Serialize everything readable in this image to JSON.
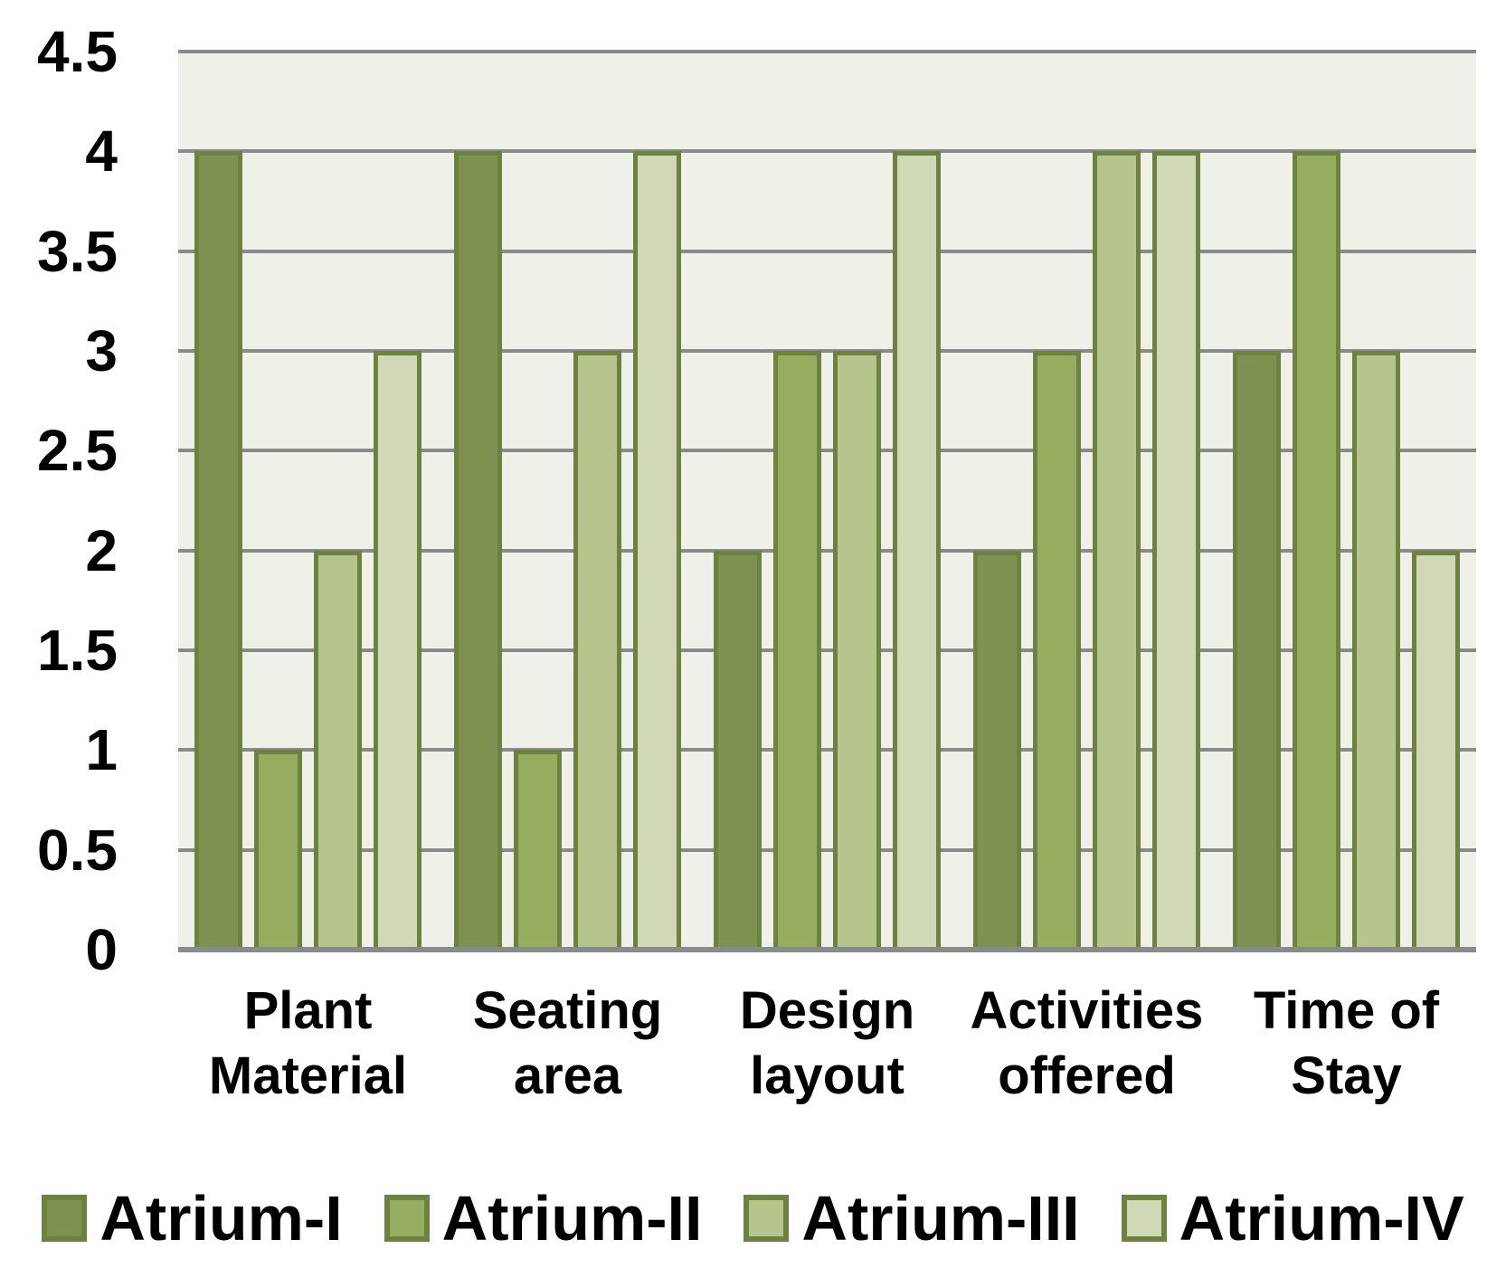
{
  "chart_data": {
    "type": "bar",
    "title": "",
    "categories": [
      "Plant Material",
      "Seating area",
      "Design layout",
      "Activities offered",
      "Time of Stay"
    ],
    "category_label_lines": [
      [
        "Plant",
        "Material"
      ],
      [
        "Seating",
        "area"
      ],
      [
        "Design",
        "layout"
      ],
      [
        "Activities",
        "offered"
      ],
      [
        "Time of",
        "Stay"
      ]
    ],
    "series": [
      {
        "name": "Atrium-I",
        "color": "#7E9150",
        "values": [
          4,
          4,
          2,
          2,
          3
        ]
      },
      {
        "name": "Atrium-II",
        "color": "#96AC5F",
        "values": [
          1,
          1,
          3,
          3,
          4
        ]
      },
      {
        "name": "Atrium-III",
        "color": "#B5C58D",
        "values": [
          2,
          3,
          3,
          4,
          3
        ]
      },
      {
        "name": "Atrium-IV",
        "color": "#CFD9B6",
        "values": [
          3,
          4,
          4,
          4,
          2
        ]
      }
    ],
    "xlabel": "",
    "ylabel": "",
    "ylim": [
      0,
      4.5
    ],
    "ytick_step": 0.5,
    "ytick_labels": [
      "0",
      "0.5",
      "1",
      "1.5",
      "2",
      "2.5",
      "3",
      "3.5",
      "4",
      "4.5"
    ],
    "grid": true,
    "legend_position": "bottom",
    "colors": {
      "bar_border": "#6D8141",
      "plot_background": "#EEF1E8",
      "gridline": "#8A8A8A",
      "axis_line": "#8A8A8A",
      "text": "#000000",
      "page_background": "#FFFFFF"
    }
  }
}
